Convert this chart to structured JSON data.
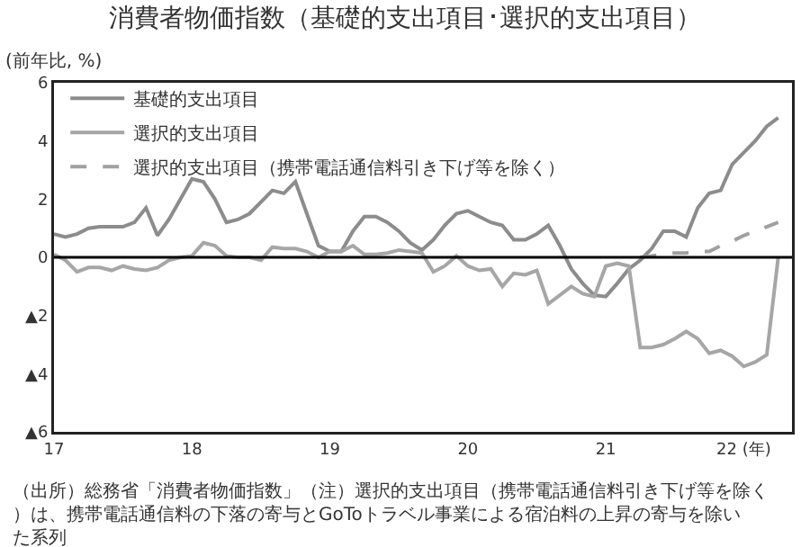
{
  "chart_data": {
    "type": "line",
    "title": "消費者物価指数（基礎的支出項目･選択的支出項目）",
    "ylabel": "(前年比, %)",
    "x": [
      17,
      17.083,
      17.167,
      17.25,
      17.333,
      17.417,
      17.5,
      17.583,
      17.667,
      17.75,
      17.833,
      17.917,
      18,
      18.083,
      18.167,
      18.25,
      18.333,
      18.417,
      18.5,
      18.583,
      18.667,
      18.75,
      18.833,
      18.917,
      19,
      19.083,
      19.167,
      19.25,
      19.333,
      19.417,
      19.5,
      19.583,
      19.667,
      19.75,
      19.833,
      19.917,
      20,
      20.083,
      20.167,
      20.25,
      20.333,
      20.417,
      20.5,
      20.583,
      20.667,
      20.75,
      20.833,
      20.917,
      21,
      21.083,
      21.167,
      21.25,
      21.333,
      21.417,
      21.5,
      21.583,
      21.667,
      21.75,
      21.833,
      21.917,
      22,
      22.083,
      22.167,
      22.25
    ],
    "series": [
      {
        "name": "基礎的支出項目",
        "color": "#8c8c8c",
        "line_style": "solid",
        "values": [
          0.8,
          0.7,
          0.8,
          1.0,
          1.05,
          1.05,
          1.05,
          1.2,
          1.7,
          0.75,
          1.3,
          2.0,
          2.7,
          2.6,
          2.0,
          1.2,
          1.3,
          1.5,
          1.9,
          2.3,
          2.2,
          2.6,
          1.5,
          0.4,
          0.2,
          0.2,
          0.9,
          1.4,
          1.4,
          1.2,
          0.9,
          0.5,
          0.25,
          0.6,
          1.1,
          1.5,
          1.6,
          1.4,
          1.2,
          1.1,
          0.6,
          0.6,
          0.8,
          1.1,
          0.4,
          -0.4,
          -0.9,
          -1.3,
          -1.35,
          -0.9,
          -0.4,
          -0.1,
          0.3,
          0.9,
          0.9,
          0.7,
          1.7,
          2.2,
          2.3,
          3.2,
          3.6,
          4.0,
          4.5,
          4.8
        ]
      },
      {
        "name": "選択的支出項目",
        "color": "#a6a6a6",
        "line_style": "solid",
        "values": [
          0.1,
          -0.1,
          -0.5,
          -0.35,
          -0.35,
          -0.45,
          -0.3,
          -0.4,
          -0.45,
          -0.35,
          -0.1,
          0,
          0.05,
          0.5,
          0.4,
          0.05,
          0,
          0,
          -0.1,
          0.35,
          0.3,
          0.3,
          0.2,
          0,
          0.2,
          0.2,
          0.4,
          0.1,
          0.1,
          0.15,
          0.25,
          0.2,
          0.15,
          -0.5,
          -0.3,
          0.05,
          -0.3,
          -0.45,
          -0.4,
          -1.0,
          -0.55,
          -0.6,
          -0.45,
          -1.6,
          -1.3,
          -1.0,
          -1.25,
          -1.35,
          -0.3,
          -0.2,
          -0.3,
          -3.1,
          -3.1,
          -3.0,
          -2.8,
          -2.55,
          -2.8,
          -3.3,
          -3.2,
          -3.4,
          -3.75,
          -3.6,
          -3.35,
          0
        ]
      },
      {
        "name": "選択的支出項目（携帯電話通信料引き下げ等を除く）",
        "color": "#a0a0a0",
        "line_style": "dashed",
        "x": [
          21.25,
          21.333,
          21.417,
          21.5,
          21.583,
          21.667,
          21.75,
          21.833,
          21.917,
          22,
          22.083,
          22.167,
          22.25
        ],
        "values": [
          0,
          0.05,
          0.1,
          0.15,
          0.15,
          0.2,
          0.2,
          0.4,
          0.55,
          0.75,
          0.9,
          1.05,
          1.2
        ]
      }
    ],
    "xlim": [
      17,
      22.35
    ],
    "xticks": [
      17,
      18,
      19,
      20,
      21,
      {
        "value": 22,
        "label": "22 (年)"
      }
    ],
    "ylim": [
      -6,
      6
    ],
    "yticks": [
      {
        "value": -6,
        "label": "▲6"
      },
      {
        "value": -4,
        "label": "▲4"
      },
      {
        "value": -2,
        "label": "▲2"
      },
      0,
      2,
      4,
      6
    ],
    "ref_lines": [
      {
        "axis": "y",
        "value": 0,
        "color": "#000000"
      }
    ],
    "grid": false,
    "legend": "top left",
    "annotations": [
      "（出所）総務省「消費者物価指数」（注）選択的支出項目（携帯電話通信料引き下げ等を除く）は、携帯電話通信料の下落の寄与とGoToトラベル事業による宿泊料の上昇の寄与を除いた系列"
    ]
  }
}
